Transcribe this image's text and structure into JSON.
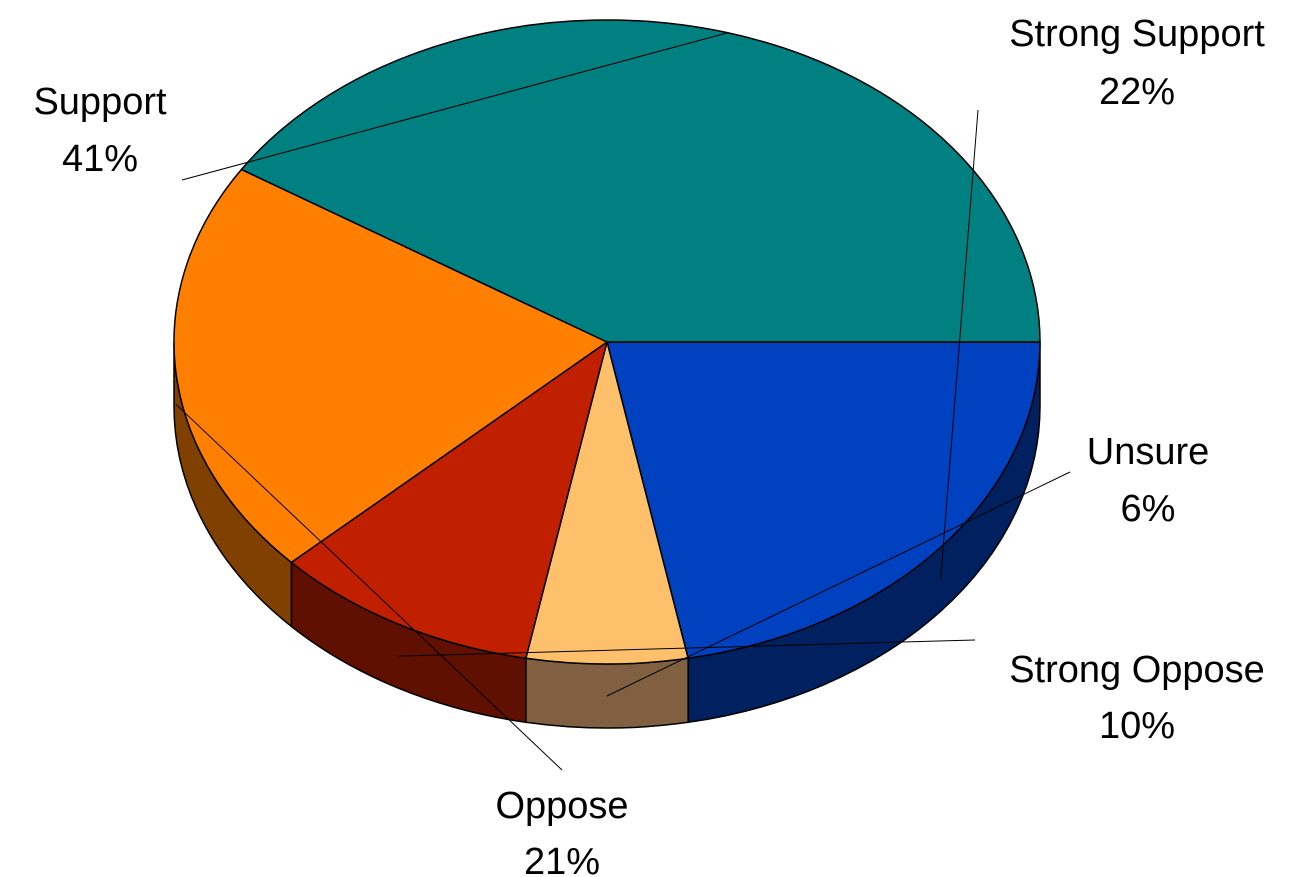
{
  "chart_data": {
    "type": "pie",
    "style": "3d",
    "title": "",
    "slices": [
      {
        "label": "Strong Support",
        "value": 22,
        "display": "22%",
        "color": "#0041C0",
        "side_color": "#00205F"
      },
      {
        "label": "Unsure",
        "value": 6,
        "display": "6%",
        "color": "#FFC06C",
        "side_color": "#806040"
      },
      {
        "label": "Strong Oppose",
        "value": 10,
        "display": "10%",
        "color": "#C02000",
        "side_color": "#601000"
      },
      {
        "label": "Oppose",
        "value": 21,
        "display": "21%",
        "color": "#FF8000",
        "side_color": "#804000"
      },
      {
        "label": "Support",
        "value": 41,
        "display": "41%",
        "color": "#008080",
        "side_color": "#004040"
      }
    ],
    "legend": "none"
  }
}
